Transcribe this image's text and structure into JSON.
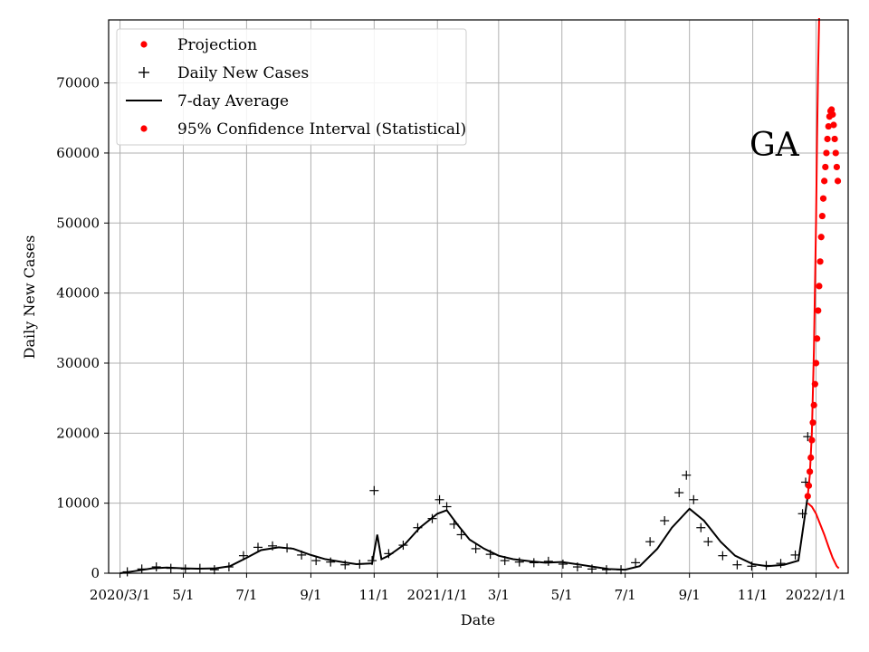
{
  "chart_data": {
    "type": "line",
    "xlabel": "Date",
    "ylabel": "Daily New Cases",
    "ylim": [
      0,
      79000
    ],
    "grid": true,
    "legend_placement": "top-left",
    "annotation": "GA",
    "x_ticks": [
      "2020/3/1",
      "5/1",
      "7/1",
      "9/1",
      "11/1",
      "2021/1/1",
      "3/1",
      "5/1",
      "7/1",
      "9/1",
      "11/1",
      "2022/1/1"
    ],
    "y_ticks": [
      "0",
      "10000",
      "20000",
      "30000",
      "40000",
      "50000",
      "60000",
      "70000"
    ],
    "colors": {
      "observed": "#000000",
      "projection": "#ff0000"
    },
    "series": [
      {
        "name": "Projection",
        "marker": "dot",
        "x": [
          "2021-12-24",
          "2021-12-25",
          "2021-12-26",
          "2021-12-27",
          "2021-12-28",
          "2021-12-29",
          "2021-12-30",
          "2021-12-31",
          "2022-01-01",
          "2022-01-02",
          "2022-01-03",
          "2022-01-04",
          "2022-01-05",
          "2022-01-06",
          "2022-01-07",
          "2022-01-08",
          "2022-01-09",
          "2022-01-10",
          "2022-01-11",
          "2022-01-12",
          "2022-01-13",
          "2022-01-14",
          "2022-01-15",
          "2022-01-16",
          "2022-01-17",
          "2022-01-18",
          "2022-01-19",
          "2022-01-20",
          "2022-01-21",
          "2022-01-22"
        ],
        "y": [
          11000,
          12500,
          14500,
          16500,
          19000,
          21500,
          24000,
          27000,
          30000,
          33500,
          37500,
          41000,
          44500,
          48000,
          51000,
          53500,
          56000,
          58000,
          60000,
          62000,
          63800,
          65200,
          66000,
          66200,
          65500,
          64000,
          62000,
          60000,
          58000,
          56000
        ]
      },
      {
        "name": "Daily New Cases",
        "marker": "plus",
        "x": [
          "2020-03-08",
          "2020-03-22",
          "2020-04-05",
          "2020-04-19",
          "2020-05-03",
          "2020-05-17",
          "2020-05-31",
          "2020-06-14",
          "2020-06-28",
          "2020-07-12",
          "2020-07-26",
          "2020-08-09",
          "2020-08-23",
          "2020-09-06",
          "2020-09-20",
          "2020-10-04",
          "2020-10-18",
          "2020-10-30",
          "2020-11-01",
          "2020-11-15",
          "2020-11-29",
          "2020-12-13",
          "2020-12-27",
          "2021-01-03",
          "2021-01-10",
          "2021-01-17",
          "2021-01-24",
          "2021-02-07",
          "2021-02-21",
          "2021-03-07",
          "2021-03-21",
          "2021-04-04",
          "2021-04-18",
          "2021-05-02",
          "2021-05-16",
          "2021-05-30",
          "2021-06-13",
          "2021-06-27",
          "2021-07-11",
          "2021-07-25",
          "2021-08-08",
          "2021-08-22",
          "2021-08-29",
          "2021-09-05",
          "2021-09-12",
          "2021-09-19",
          "2021-10-03",
          "2021-10-17",
          "2021-10-31",
          "2021-11-14",
          "2021-11-28",
          "2021-12-12",
          "2021-12-19",
          "2021-12-22",
          "2021-12-24"
        ],
        "y": [
          200,
          600,
          900,
          700,
          600,
          700,
          500,
          900,
          2500,
          3700,
          3900,
          3600,
          2600,
          1800,
          1600,
          1200,
          1300,
          1800,
          11800,
          2800,
          4000,
          6500,
          7800,
          10500,
          9500,
          7000,
          5500,
          3500,
          2700,
          1800,
          1600,
          1500,
          1700,
          1300,
          900,
          600,
          500,
          500,
          1500,
          4500,
          7500,
          11500,
          14000,
          10500,
          6500,
          4500,
          2500,
          1200,
          1000,
          1100,
          1400,
          2600,
          8500,
          13000,
          19500
        ]
      },
      {
        "name": "7-day Average",
        "marker": "line",
        "x": [
          "2020-03-01",
          "2020-03-15",
          "2020-04-01",
          "2020-04-15",
          "2020-05-01",
          "2020-05-15",
          "2020-06-01",
          "2020-06-15",
          "2020-07-01",
          "2020-07-15",
          "2020-08-01",
          "2020-08-15",
          "2020-09-01",
          "2020-09-15",
          "2020-10-01",
          "2020-10-15",
          "2020-10-30",
          "2020-11-04",
          "2020-11-08",
          "2020-11-15",
          "2020-12-01",
          "2020-12-15",
          "2021-01-01",
          "2021-01-10",
          "2021-01-20",
          "2021-02-01",
          "2021-02-15",
          "2021-03-01",
          "2021-03-15",
          "2021-04-01",
          "2021-04-15",
          "2021-05-01",
          "2021-05-15",
          "2021-06-01",
          "2021-06-15",
          "2021-07-01",
          "2021-07-15",
          "2021-08-01",
          "2021-08-15",
          "2021-09-01",
          "2021-09-15",
          "2021-10-01",
          "2021-10-15",
          "2021-11-01",
          "2021-11-15",
          "2021-12-01",
          "2021-12-15",
          "2021-12-24"
        ],
        "y": [
          0,
          300,
          700,
          800,
          700,
          650,
          700,
          1000,
          2200,
          3300,
          3700,
          3500,
          2600,
          2000,
          1600,
          1300,
          1400,
          5500,
          2000,
          2500,
          4200,
          6500,
          8500,
          9000,
          7000,
          4800,
          3500,
          2500,
          2000,
          1700,
          1500,
          1600,
          1300,
          900,
          600,
          500,
          1000,
          3500,
          6500,
          9200,
          7500,
          4500,
          2500,
          1300,
          1000,
          1200,
          1800,
          11000
        ]
      },
      {
        "name": "95% Confidence Interval (Statistical)",
        "marker": "dot",
        "bounds": [
          {
            "name": "upper",
            "x": [
              "2021-12-24",
              "2021-12-26",
              "2021-12-28",
              "2021-12-30",
              "2022-01-01",
              "2022-01-02",
              "2022-01-03",
              "2022-01-04"
            ],
            "y": [
              11000,
              14000,
              20000,
              32000,
              50000,
              62000,
              72000,
              80000
            ]
          },
          {
            "name": "lower",
            "x": [
              "2021-12-24",
              "2021-12-28",
              "2022-01-01",
              "2022-01-05",
              "2022-01-09",
              "2022-01-13",
              "2022-01-17",
              "2022-01-21",
              "2022-01-23"
            ],
            "y": [
              10000,
              9500,
              8500,
              7000,
              5500,
              3800,
              2200,
              1000,
              700
            ]
          }
        ]
      }
    ]
  }
}
